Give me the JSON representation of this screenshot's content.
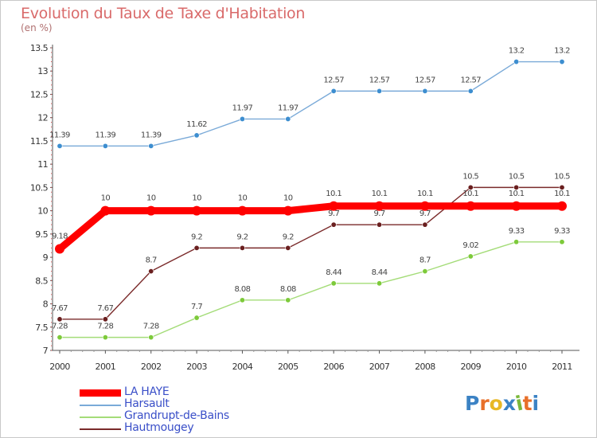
{
  "title": "Evolution du Taux de Taxe d'Habitation",
  "unit": "(en %)",
  "logo": {
    "text": "Proxiti",
    "letter_colors": [
      "#3b82c4",
      "#e8702a",
      "#e8b825",
      "#3b82c4",
      "#7ab83a",
      "#e8702a",
      "#3b82c4"
    ]
  },
  "chart_data": {
    "type": "line",
    "title": "Evolution du Taux de Taxe d'Habitation",
    "ylabel": "(en %)",
    "xlabel": "",
    "x": [
      "2000",
      "2001",
      "2002",
      "2003",
      "2004",
      "2005",
      "2006",
      "2007",
      "2008",
      "2009",
      "2010",
      "2011"
    ],
    "ylim": [
      7,
      13.5
    ],
    "yticks": [
      "7",
      "7.5",
      "8",
      "8.5",
      "9",
      "9.5",
      "10",
      "10.5",
      "11",
      "11.5",
      "12",
      "12.5",
      "13",
      "13.5"
    ],
    "grid": false,
    "legend_position": "bottom-left",
    "series": [
      {
        "name": "LA HAYE",
        "color": "#ff0000",
        "emphasis": "thick",
        "values": [
          9.18,
          10,
          10,
          10,
          10,
          10,
          10.1,
          10.1,
          10.1,
          10.1,
          10.1,
          10.1
        ],
        "labels": [
          "9.18",
          "10",
          "10",
          "10",
          "10",
          "10",
          "10.1",
          "10.1",
          "10.1",
          "10.1",
          "10.1",
          "10.1"
        ]
      },
      {
        "name": "Harsault",
        "color": "#7aaad8",
        "marker_color": "#3d8ed0",
        "values": [
          11.39,
          11.39,
          11.39,
          11.62,
          11.97,
          11.97,
          12.57,
          12.57,
          12.57,
          12.57,
          13.2,
          13.2
        ],
        "labels": [
          "11.39",
          "11.39",
          "11.39",
          "11.62",
          "11.97",
          "11.97",
          "12.57",
          "12.57",
          "12.57",
          "12.57",
          "13.2",
          "13.2"
        ]
      },
      {
        "name": "Grandrupt-de-Bains",
        "color": "#a4dc78",
        "marker_color": "#7dca3a",
        "values": [
          7.28,
          7.28,
          7.28,
          7.7,
          8.08,
          8.08,
          8.44,
          8.44,
          8.7,
          9.02,
          9.33,
          9.33
        ],
        "labels": [
          "7.28",
          "7.28",
          "7.28",
          "7.7",
          "8.08",
          "8.08",
          "8.44",
          "8.44",
          "8.7",
          "9.02",
          "9.33",
          "9.33"
        ]
      },
      {
        "name": "Hautmougey",
        "color": "#7a2a2a",
        "marker_color": "#6a1f1f",
        "values": [
          7.67,
          7.67,
          8.7,
          9.2,
          9.2,
          9.2,
          9.7,
          9.7,
          9.7,
          10.5,
          10.5,
          10.5
        ],
        "labels": [
          "7.67",
          "7.67",
          "8.7",
          "9.2",
          "9.2",
          "9.2",
          "9.7",
          "9.7",
          "9.7",
          "10.5",
          "10.5",
          "10.5"
        ]
      }
    ]
  }
}
